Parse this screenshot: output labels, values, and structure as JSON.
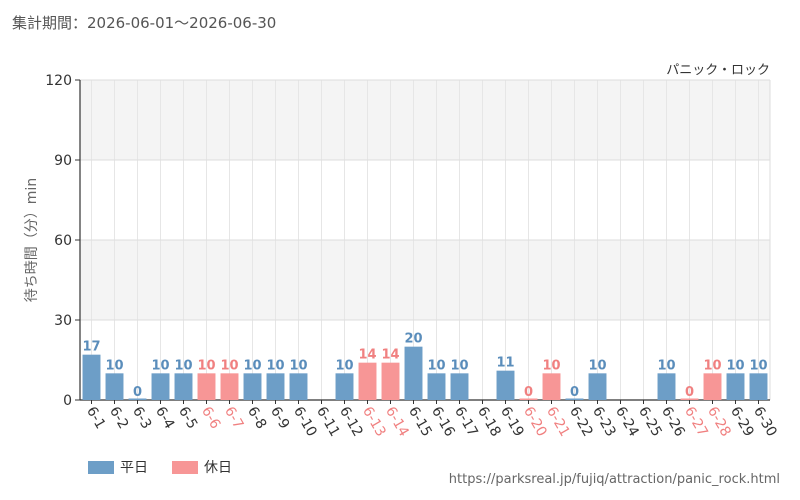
{
  "header": {
    "period_text": "集計期間：2026-06-01～2026-06-30"
  },
  "footer": {
    "source_text": "https://parksreal.jp/fujiq/attraction/panic_rock.html"
  },
  "legend": [
    {
      "label": "平日",
      "color": "#6d9ec7"
    },
    {
      "label": "休日",
      "color": "#f79696"
    }
  ],
  "chart_data": {
    "type": "bar",
    "title": "パニック・ロック",
    "ylabel": "待ち時間（分）min",
    "xlabel": "",
    "ylim": [
      0,
      120
    ],
    "yticks": [
      0,
      30,
      60,
      90,
      120
    ],
    "grid": true,
    "categories": [
      "6-1",
      "6-2",
      "6-3",
      "6-4",
      "6-5",
      "6-6",
      "6-7",
      "6-8",
      "6-9",
      "6-10",
      "6-11",
      "6-12",
      "6-13",
      "6-14",
      "6-15",
      "6-16",
      "6-17",
      "6-18",
      "6-19",
      "6-20",
      "6-21",
      "6-22",
      "6-23",
      "6-24",
      "6-25",
      "6-26",
      "6-27",
      "6-28",
      "6-29",
      "6-30"
    ],
    "values": [
      17,
      10,
      0,
      10,
      10,
      10,
      10,
      10,
      10,
      10,
      null,
      10,
      14,
      14,
      20,
      10,
      10,
      null,
      11,
      0,
      10,
      0,
      10,
      null,
      null,
      10,
      0,
      10,
      10,
      10
    ],
    "day_type": [
      "平日",
      "平日",
      "平日",
      "平日",
      "平日",
      "休日",
      "休日",
      "平日",
      "平日",
      "平日",
      "平日",
      "平日",
      "休日",
      "休日",
      "平日",
      "平日",
      "平日",
      "平日",
      "平日",
      "休日",
      "休日",
      "平日",
      "平日",
      "平日",
      "平日",
      "平日",
      "休日",
      "休日",
      "平日",
      "平日"
    ],
    "colors": {
      "平日": "#6d9ec7",
      "休日": "#f79696"
    },
    "label_colors": {
      "平日": "#5a8dbb",
      "休日": "#f08080"
    }
  }
}
